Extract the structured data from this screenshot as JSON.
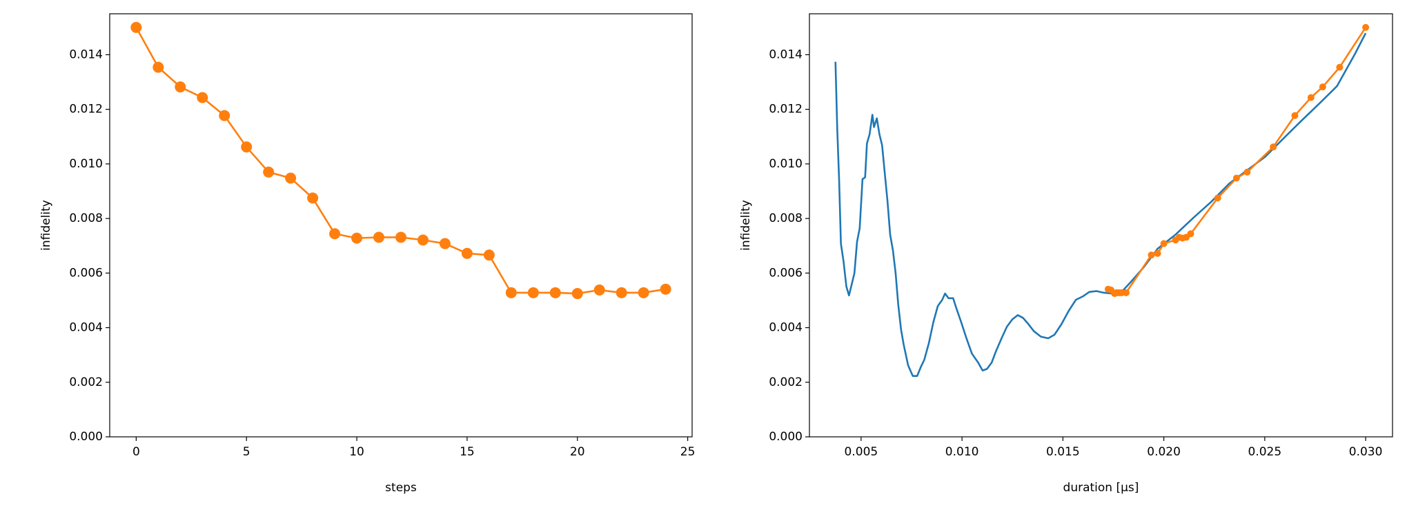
{
  "chart_data": [
    {
      "type": "line",
      "xlabel": "steps",
      "ylabel": "infidelity",
      "x": [
        0,
        1,
        2,
        3,
        4,
        5,
        6,
        7,
        8,
        9,
        10,
        11,
        12,
        13,
        14,
        15,
        16,
        17,
        18,
        19,
        20,
        21,
        22,
        23,
        24
      ],
      "series": [
        {
          "color": "#ff7f0e",
          "marker": "o",
          "values": [
            0.015,
            0.01354,
            0.01282,
            0.01243,
            0.01177,
            0.01062,
            0.0097,
            0.00948,
            0.00875,
            0.00744,
            0.00728,
            0.00731,
            0.00731,
            0.00721,
            0.00708,
            0.00672,
            0.00666,
            0.00528,
            0.00528,
            0.00528,
            0.00525,
            0.00538,
            0.00528,
            0.00528,
            0.00541
          ]
        }
      ],
      "xlim": [
        -1.2,
        25.2
      ],
      "xticks": [
        0,
        5,
        10,
        15,
        20,
        25
      ],
      "ylim": [
        0,
        0.0155
      ],
      "yticks": [
        {
          "value": 0,
          "label": "0.000"
        },
        0.002,
        0.004,
        0.006,
        0.008,
        {
          "value": 0.01,
          "label": "0.010"
        },
        0.012,
        0.014
      ]
    },
    {
      "type": "line",
      "xlabel": "duration [μs]",
      "ylabel": "infidelity",
      "series": [
        {
          "color": "#1f77b4",
          "x": [
            0.00373,
            0.00382,
            0.00391,
            0.004,
            0.00413,
            0.00427,
            0.0044,
            0.00453,
            0.00467,
            0.0048,
            0.00493,
            0.00507,
            0.0052,
            0.00529,
            0.00542,
            0.00556,
            0.00564,
            0.00578,
            0.00591,
            0.00604,
            0.00618,
            0.00631,
            0.00644,
            0.00658,
            0.00671,
            0.00684,
            0.00698,
            0.00711,
            0.00733,
            0.00756,
            0.00778,
            0.00796,
            0.00813,
            0.00836,
            0.00858,
            0.0088,
            0.00902,
            0.00916,
            0.00933,
            0.00956,
            0.00973,
            0.00996,
            0.01022,
            0.01049,
            0.0108,
            0.01102,
            0.01124,
            0.01147,
            0.01169,
            0.01196,
            0.01222,
            0.01249,
            0.01276,
            0.01302,
            0.01329,
            0.01356,
            0.01391,
            0.01427,
            0.01458,
            0.01493,
            0.01529,
            0.01564,
            0.016,
            0.01631,
            0.01667,
            0.01702,
            0.01747,
            0.01791,
            0.01836,
            0.01902,
            0.01969,
            0.02058,
            0.02147,
            0.02236,
            0.02324,
            0.02413,
            0.02502,
            0.02591,
            0.0268,
            0.02769,
            0.02858,
            0.02947,
            0.03
          ],
          "values": [
            0.01374,
            0.01125,
            0.00944,
            0.00708,
            0.00643,
            0.00551,
            0.00518,
            0.00557,
            0.006,
            0.00715,
            0.00764,
            0.00944,
            0.00951,
            0.01075,
            0.01108,
            0.0118,
            0.01135,
            0.01167,
            0.01108,
            0.01069,
            0.00961,
            0.00862,
            0.00741,
            0.00682,
            0.006,
            0.00485,
            0.00393,
            0.00338,
            0.00262,
            0.00223,
            0.00223,
            0.00256,
            0.00282,
            0.00344,
            0.0042,
            0.00479,
            0.00502,
            0.00525,
            0.00508,
            0.00508,
            0.00469,
            0.0042,
            0.00361,
            0.00305,
            0.00272,
            0.00243,
            0.00249,
            0.00272,
            0.00315,
            0.00361,
            0.00403,
            0.0043,
            0.00446,
            0.00436,
            0.00413,
            0.00387,
            0.00367,
            0.00361,
            0.00374,
            0.00413,
            0.00462,
            0.00502,
            0.00515,
            0.00531,
            0.00534,
            0.00528,
            0.00525,
            0.00531,
            0.00567,
            0.00623,
            0.00689,
            0.00741,
            0.00803,
            0.00862,
            0.00928,
            0.00977,
            0.01026,
            0.01092,
            0.01157,
            0.0122,
            0.01285,
            0.01403,
            0.01479
          ]
        },
        {
          "color": "#ff7f0e",
          "marker": "o",
          "x": [
            0.03,
            0.02871,
            0.02787,
            0.02729,
            0.02649,
            0.02542,
            0.02413,
            0.0236,
            0.02267,
            0.02133,
            0.02093,
            0.02111,
            0.02076,
            0.02058,
            0.02,
            0.01969,
            0.01938,
            0.01813,
            0.01791,
            0.01773,
            0.01756,
            0.01738,
            0.01764,
            0.01782,
            0.01724
          ],
          "values": [
            0.015,
            0.01354,
            0.01282,
            0.01243,
            0.01177,
            0.01062,
            0.0097,
            0.00948,
            0.00875,
            0.00744,
            0.00728,
            0.00731,
            0.00731,
            0.00721,
            0.00708,
            0.00672,
            0.00666,
            0.00528,
            0.00528,
            0.00528,
            0.00525,
            0.00538,
            0.00528,
            0.00528,
            0.00541
          ]
        }
      ],
      "xlim": [
        0.00244,
        0.03133
      ],
      "xticks": [
        0.005,
        {
          "value": 0.01,
          "label": "0.010"
        },
        0.015,
        {
          "value": 0.02,
          "label": "0.020"
        },
        0.025,
        {
          "value": 0.03,
          "label": "0.030"
        }
      ],
      "ylim": [
        0,
        0.0155
      ],
      "yticks": [
        {
          "value": 0,
          "label": "0.000"
        },
        0.002,
        0.004,
        0.006,
        0.008,
        {
          "value": 0.01,
          "label": "0.010"
        },
        0.012,
        0.014
      ]
    }
  ]
}
